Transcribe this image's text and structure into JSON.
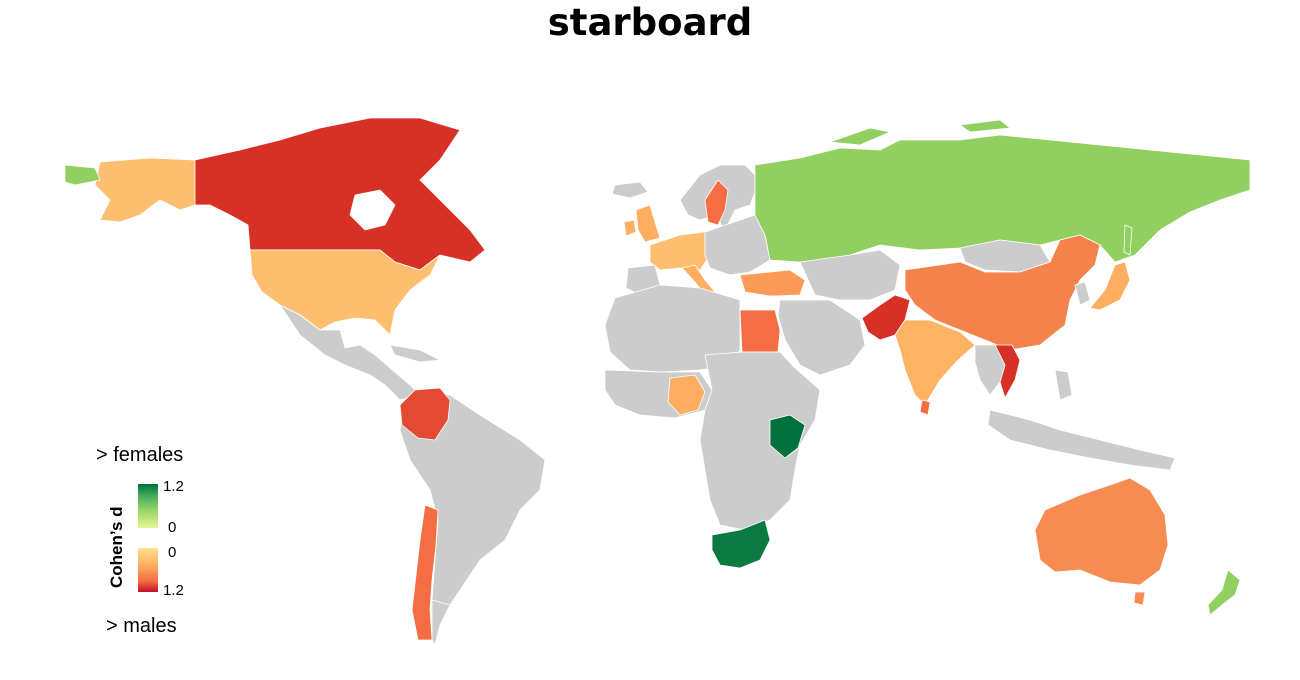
{
  "title": "starboard",
  "legend": {
    "top_label": "> females",
    "bottom_label": "> males",
    "axis_title": "Cohen’s d",
    "female_max": "1.2",
    "female_min": "0",
    "male_min": "0",
    "male_max": "1.2"
  },
  "colors": {
    "no_data": "#cccccc",
    "female_scale": [
      "#d9ef8b",
      "#a6d96a",
      "#66bd63",
      "#1a9850",
      "#00703c"
    ],
    "male_scale": [
      "#fee08b",
      "#fdae61",
      "#f46d43",
      "#d73027",
      "#c0102a"
    ]
  },
  "regions": [
    {
      "id": "greenland",
      "name": "Greenland",
      "fill": "#ffffff",
      "stroke": "#cccccc"
    },
    {
      "id": "alaska",
      "name": "Alaska",
      "fill": "#fdbf6f"
    },
    {
      "id": "canada",
      "name": "Canada",
      "fill": "#d73027"
    },
    {
      "id": "usa",
      "name": "United States",
      "fill": "#fdbf6f"
    },
    {
      "id": "mexico-central",
      "name": "Mexico & Central America",
      "fill": "#cccccc"
    },
    {
      "id": "colombia",
      "name": "Colombia",
      "fill": "#e34a33"
    },
    {
      "id": "south-america",
      "name": "South America",
      "fill": "#cccccc"
    },
    {
      "id": "chile",
      "name": "Chile",
      "fill": "#f46d43"
    },
    {
      "id": "argentina-south",
      "name": "Argentina (south)",
      "fill": "#cccccc"
    },
    {
      "id": "uk",
      "name": "United Kingdom",
      "fill": "#fdae61"
    },
    {
      "id": "ireland",
      "name": "Ireland",
      "fill": "#fdae61"
    },
    {
      "id": "scandinavia",
      "name": "Scandinavia",
      "fill": "#cccccc"
    },
    {
      "id": "sweden",
      "name": "Sweden",
      "fill": "#f46d43"
    },
    {
      "id": "western-europe",
      "name": "Western Europe",
      "fill": "#fdbf6f"
    },
    {
      "id": "eastern-europe",
      "name": "Eastern Europe",
      "fill": "#cccccc"
    },
    {
      "id": "italy",
      "name": "Italy",
      "fill": "#fdae61"
    },
    {
      "id": "turkey",
      "name": "Turkey",
      "fill": "#fd9a58"
    },
    {
      "id": "russia",
      "name": "Russia",
      "fill": "#91cf60"
    },
    {
      "id": "north-africa",
      "name": "North Africa",
      "fill": "#cccccc"
    },
    {
      "id": "egypt",
      "name": "Egypt",
      "fill": "#f46d43"
    },
    {
      "id": "west-africa",
      "name": "West Africa",
      "fill": "#cccccc"
    },
    {
      "id": "nigeria",
      "name": "Nigeria",
      "fill": "#fdae61"
    },
    {
      "id": "central-africa",
      "name": "Central & East Africa",
      "fill": "#cccccc"
    },
    {
      "id": "kenya",
      "name": "Kenya",
      "fill": "#00703c"
    },
    {
      "id": "south-africa",
      "name": "South Africa",
      "fill": "#0a7a40"
    },
    {
      "id": "madagascar",
      "name": "Madagascar",
      "fill": "#ffffff",
      "stroke": "#cccccc"
    },
    {
      "id": "middle-east",
      "name": "Middle East",
      "fill": "#cccccc"
    },
    {
      "id": "central-asia",
      "name": "Central Asia",
      "fill": "#cccccc"
    },
    {
      "id": "pakistan",
      "name": "Pakistan",
      "fill": "#d73027"
    },
    {
      "id": "india",
      "name": "India",
      "fill": "#fdb462"
    },
    {
      "id": "sri-lanka",
      "name": "Sri Lanka",
      "fill": "#f46d43"
    },
    {
      "id": "china",
      "name": "China",
      "fill": "#f4824b"
    },
    {
      "id": "mongolia",
      "name": "Mongolia",
      "fill": "#cccccc"
    },
    {
      "id": "vietnam",
      "name": "Vietnam",
      "fill": "#d73027"
    },
    {
      "id": "southeast-asia",
      "name": "Southeast Asia",
      "fill": "#cccccc"
    },
    {
      "id": "japan",
      "name": "Japan",
      "fill": "#fdae61"
    },
    {
      "id": "indonesia",
      "name": "Indonesia & Philippines",
      "fill": "#cccccc"
    },
    {
      "id": "australia",
      "name": "Australia",
      "fill": "#f68c52"
    },
    {
      "id": "new-zealand",
      "name": "New Zealand",
      "fill": "#91cf60"
    }
  ]
}
